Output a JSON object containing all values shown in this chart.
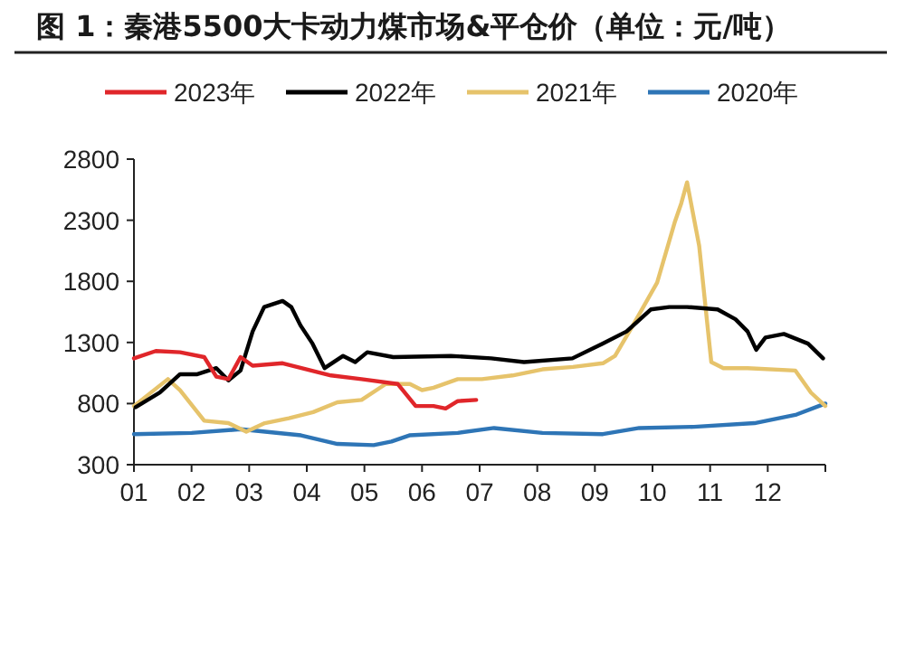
{
  "chart_data": {
    "type": "line",
    "title": "图  1：秦港5500大卡动力煤市场&平仓价（单位：元/吨）",
    "xlim": [
      1,
      13
    ],
    "ylim": [
      300,
      2800
    ],
    "xticks": [
      {
        "value": 1,
        "label": "01"
      },
      {
        "value": 2,
        "label": "02"
      },
      {
        "value": 3,
        "label": "03"
      },
      {
        "value": 4,
        "label": "04"
      },
      {
        "value": 5,
        "label": "05"
      },
      {
        "value": 6,
        "label": "06"
      },
      {
        "value": 7,
        "label": "07"
      },
      {
        "value": 8,
        "label": "08"
      },
      {
        "value": 9,
        "label": "09"
      },
      {
        "value": 10,
        "label": "10"
      },
      {
        "value": 11,
        "label": "11"
      },
      {
        "value": 12,
        "label": "12"
      },
      {
        "value": 13,
        "label": null
      }
    ],
    "yticks": [
      300,
      800,
      1300,
      1800,
      2300,
      2800
    ],
    "legend": "top",
    "grid": false,
    "series": [
      {
        "name": "2023年",
        "color": "#e0262a",
        "x": [
          1.0,
          1.38,
          1.8,
          2.22,
          2.43,
          2.64,
          2.85,
          3.06,
          3.58,
          4.42,
          4.95,
          5.58,
          5.89,
          6.2,
          6.41,
          6.62,
          6.94
        ],
        "values": [
          1170,
          1230,
          1220,
          1180,
          1020,
          1000,
          1180,
          1110,
          1130,
          1030,
          1000,
          960,
          780,
          780,
          760,
          820,
          830
        ]
      },
      {
        "name": "2022年",
        "color": "#000000",
        "x": [
          1.03,
          1.45,
          1.8,
          2.1,
          2.43,
          2.64,
          2.85,
          3.06,
          3.26,
          3.58,
          3.73,
          3.89,
          4.1,
          4.31,
          4.63,
          4.84,
          5.05,
          5.5,
          6.5,
          7.2,
          7.77,
          8.61,
          9.13,
          9.55,
          9.97,
          10.29,
          10.6,
          11.13,
          11.44,
          11.65,
          11.8,
          11.96,
          12.28,
          12.7,
          12.96
        ],
        "values": [
          770,
          890,
          1040,
          1040,
          1090,
          990,
          1070,
          1390,
          1590,
          1640,
          1590,
          1440,
          1290,
          1090,
          1190,
          1140,
          1220,
          1180,
          1190,
          1170,
          1140,
          1170,
          1290,
          1390,
          1570,
          1590,
          1590,
          1570,
          1490,
          1390,
          1240,
          1340,
          1370,
          1290,
          1170
        ]
      },
      {
        "name": "2021年",
        "color": "#e6c36b",
        "x": [
          1.0,
          1.59,
          1.8,
          2.22,
          2.64,
          2.95,
          3.27,
          3.69,
          4.11,
          4.53,
          4.95,
          5.37,
          5.79,
          6.0,
          6.2,
          6.62,
          7.04,
          7.57,
          8.09,
          8.62,
          9.14,
          9.35,
          9.66,
          10.08,
          10.39,
          10.5,
          10.6,
          10.81,
          11.02,
          11.23,
          11.65,
          12.48,
          12.75,
          13.0
        ],
        "values": [
          780,
          1000,
          910,
          660,
          640,
          570,
          640,
          680,
          730,
          810,
          830,
          960,
          960,
          910,
          930,
          1000,
          1000,
          1030,
          1080,
          1100,
          1130,
          1190,
          1440,
          1790,
          2290,
          2440,
          2610,
          2090,
          1140,
          1090,
          1090,
          1070,
          890,
          780
        ]
      },
      {
        "name": "2020年",
        "color": "#2e75b6",
        "x": [
          1.0,
          2.0,
          2.85,
          3.9,
          4.53,
          5.16,
          5.47,
          5.78,
          6.62,
          7.25,
          8.09,
          9.14,
          9.77,
          10.72,
          11.77,
          12.5,
          13.0
        ],
        "values": [
          550,
          560,
          590,
          540,
          470,
          460,
          490,
          540,
          560,
          600,
          560,
          550,
          600,
          610,
          640,
          710,
          800
        ]
      }
    ]
  }
}
